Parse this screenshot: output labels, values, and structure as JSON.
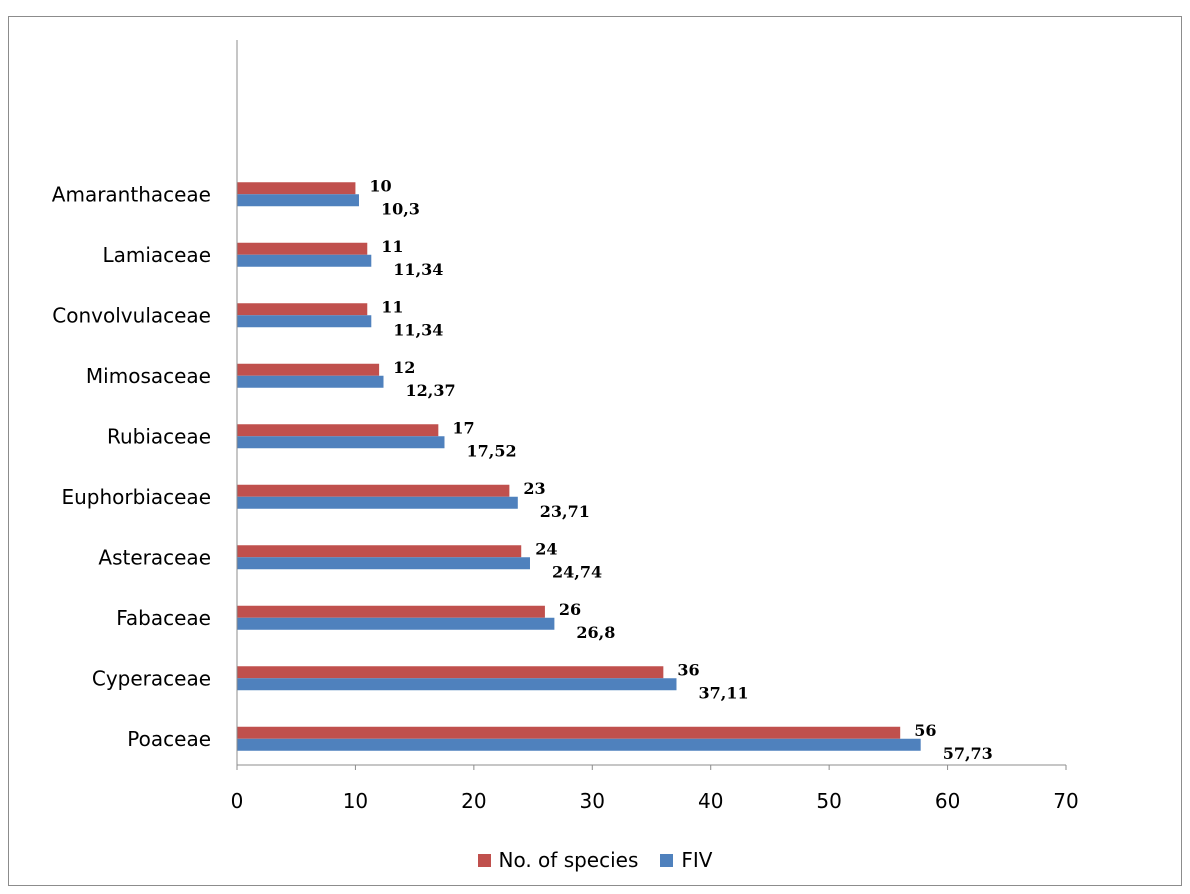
{
  "chart_data": {
    "type": "bar",
    "orientation": "horizontal",
    "categories": [
      "Poaceae",
      "Cyperaceae",
      "Fabaceae",
      "Asteraceae",
      "Euphorbiaceae",
      "Rubiaceae",
      "Mimosaceae",
      "Convolvulaceae",
      "Lamiaceae",
      "Amaranthaceae"
    ],
    "series": [
      {
        "name": "No. of species",
        "color": "#c0504d",
        "values": [
          56,
          36,
          26,
          24,
          23,
          17,
          12,
          11,
          11,
          10
        ],
        "labels": [
          "56",
          "36",
          "26",
          "24",
          "23",
          "17",
          "12",
          "11",
          "11",
          "10"
        ]
      },
      {
        "name": "FIV",
        "color": "#4f81bd",
        "values": [
          57.73,
          37.11,
          26.8,
          24.74,
          23.71,
          17.52,
          12.37,
          11.34,
          11.34,
          10.3
        ],
        "labels": [
          "57,73",
          "37,11",
          "26,8",
          "24,74",
          "23,71",
          "17,52",
          "12,37",
          "11,34",
          "11,34",
          "10,3"
        ]
      }
    ],
    "xlim": [
      0,
      70
    ],
    "xticks": [
      "0",
      "10",
      "20",
      "30",
      "40",
      "50",
      "60",
      "70"
    ],
    "title": "",
    "xlabel": "",
    "ylabel": "",
    "grid": false,
    "legend_position": "bottom"
  }
}
